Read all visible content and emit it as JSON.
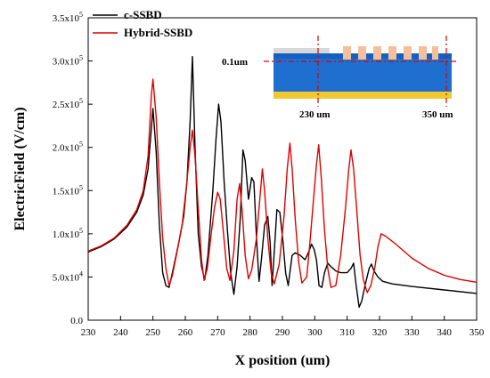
{
  "chart_data": {
    "type": "line",
    "title": "",
    "xlabel": "X position (um)",
    "ylabel": "ElectricField (V/cm)",
    "xlim": [
      230,
      350
    ],
    "ylim": [
      0,
      350000
    ],
    "x_ticks": [
      230,
      240,
      250,
      260,
      270,
      280,
      290,
      300,
      310,
      320,
      330,
      340,
      350
    ],
    "y_ticks": [
      {
        "value": 0,
        "mant": "0.0",
        "exp": ""
      },
      {
        "value": 50000,
        "mant": "5.0x10",
        "exp": "4"
      },
      {
        "value": 100000,
        "mant": "1.0x10",
        "exp": "5"
      },
      {
        "value": 150000,
        "mant": "1.5x10",
        "exp": "5"
      },
      {
        "value": 200000,
        "mant": "2.0x10",
        "exp": "5"
      },
      {
        "value": 250000,
        "mant": "2.5x10",
        "exp": "5"
      },
      {
        "value": 300000,
        "mant": "3.0x10",
        "exp": "5"
      },
      {
        "value": 350000,
        "mant": "3.5x10",
        "exp": "5"
      }
    ],
    "legend_position": "top-left",
    "grid": false,
    "series": [
      {
        "name": "c-SSBD",
        "color": "#000000",
        "points": [
          [
            230,
            79000
          ],
          [
            234,
            85000
          ],
          [
            238,
            94000
          ],
          [
            242,
            108000
          ],
          [
            245,
            125000
          ],
          [
            247,
            145000
          ],
          [
            248.5,
            175000
          ],
          [
            250,
            245000
          ],
          [
            251,
            195000
          ],
          [
            252,
            110000
          ],
          [
            253,
            55000
          ],
          [
            254,
            40000
          ],
          [
            255,
            38000
          ],
          [
            256,
            55000
          ],
          [
            258,
            90000
          ],
          [
            259.5,
            120000
          ],
          [
            260.5,
            160000
          ],
          [
            261.5,
            230000
          ],
          [
            262.2,
            305000
          ],
          [
            263,
            200000
          ],
          [
            264,
            100000
          ],
          [
            265,
            62000
          ],
          [
            266,
            47000
          ],
          [
            267,
            75000
          ],
          [
            268.5,
            150000
          ],
          [
            269.5,
            210000
          ],
          [
            270.3,
            250000
          ],
          [
            271,
            230000
          ],
          [
            272,
            160000
          ],
          [
            273,
            105000
          ],
          [
            274,
            55000
          ],
          [
            275,
            30000
          ],
          [
            276,
            62000
          ],
          [
            277,
            120000
          ],
          [
            277.8,
            197000
          ],
          [
            278.5,
            185000
          ],
          [
            279.5,
            140000
          ],
          [
            280.5,
            165000
          ],
          [
            281.2,
            160000
          ],
          [
            282,
            95000
          ],
          [
            282.8,
            45000
          ],
          [
            283.5,
            70000
          ],
          [
            284.5,
            110000
          ],
          [
            285.5,
            120000
          ],
          [
            286.2,
            90000
          ],
          [
            286.8,
            40000
          ],
          [
            287.5,
            80000
          ],
          [
            288.3,
            128000
          ],
          [
            289.2,
            125000
          ],
          [
            290.2,
            90000
          ],
          [
            291,
            55000
          ],
          [
            291.8,
            40000
          ],
          [
            293,
            75000
          ],
          [
            294,
            78000
          ],
          [
            295.5,
            75000
          ],
          [
            297,
            70000
          ],
          [
            298,
            78000
          ],
          [
            299,
            88000
          ],
          [
            299.8,
            82000
          ],
          [
            300.5,
            70000
          ],
          [
            301.3,
            40000
          ],
          [
            302.2,
            38000
          ],
          [
            303,
            55000
          ],
          [
            304,
            66000
          ],
          [
            305,
            62000
          ],
          [
            306.5,
            57000
          ],
          [
            308,
            55000
          ],
          [
            310,
            55000
          ],
          [
            311.2,
            60000
          ],
          [
            312,
            66000
          ],
          [
            312.8,
            40000
          ],
          [
            313.7,
            15000
          ],
          [
            314.5,
            22000
          ],
          [
            315.5,
            40000
          ],
          [
            316.8,
            60000
          ],
          [
            317.5,
            65000
          ],
          [
            318.3,
            57000
          ],
          [
            319.5,
            50000
          ],
          [
            321,
            45000
          ],
          [
            324,
            42000
          ],
          [
            330,
            39000
          ],
          [
            340,
            35000
          ],
          [
            350,
            31000
          ]
        ]
      },
      {
        "name": "Hybrid-SSBD",
        "color": "#e00000",
        "points": [
          [
            230,
            80000
          ],
          [
            234,
            86000
          ],
          [
            238,
            95000
          ],
          [
            242,
            110000
          ],
          [
            245,
            128000
          ],
          [
            247,
            150000
          ],
          [
            248.5,
            190000
          ],
          [
            249.5,
            260000
          ],
          [
            250,
            279000
          ],
          [
            251,
            235000
          ],
          [
            252,
            160000
          ],
          [
            253,
            95000
          ],
          [
            254,
            60000
          ],
          [
            255,
            40000
          ],
          [
            256,
            52000
          ],
          [
            257.5,
            80000
          ],
          [
            259,
            110000
          ],
          [
            260.5,
            160000
          ],
          [
            261.5,
            200000
          ],
          [
            262.2,
            220000
          ],
          [
            263,
            190000
          ],
          [
            264,
            130000
          ],
          [
            265,
            70000
          ],
          [
            265.8,
            46000
          ],
          [
            266.8,
            60000
          ],
          [
            268,
            100000
          ],
          [
            269,
            130000
          ],
          [
            270,
            148000
          ],
          [
            270.8,
            140000
          ],
          [
            271.8,
            100000
          ],
          [
            272.8,
            60000
          ],
          [
            273.8,
            46000
          ],
          [
            275,
            80000
          ],
          [
            276,
            140000
          ],
          [
            276.8,
            158000
          ],
          [
            277.6,
            125000
          ],
          [
            278.5,
            75000
          ],
          [
            279.5,
            48000
          ],
          [
            280.5,
            58000
          ],
          [
            282,
            95000
          ],
          [
            283,
            140000
          ],
          [
            283.8,
            175000
          ],
          [
            284.5,
            150000
          ],
          [
            285.5,
            95000
          ],
          [
            286.5,
            55000
          ],
          [
            287.5,
            42000
          ],
          [
            289,
            65000
          ],
          [
            290.5,
            120000
          ],
          [
            291.5,
            175000
          ],
          [
            292.3,
            205000
          ],
          [
            293,
            175000
          ],
          [
            294,
            115000
          ],
          [
            295,
            68000
          ],
          [
            296,
            43000
          ],
          [
            297.5,
            50000
          ],
          [
            298.5,
            90000
          ],
          [
            299.5,
            135000
          ],
          [
            300.5,
            180000
          ],
          [
            301.2,
            203000
          ],
          [
            302,
            165000
          ],
          [
            303,
            105000
          ],
          [
            304,
            60000
          ],
          [
            305,
            38000
          ],
          [
            306.5,
            40000
          ],
          [
            308,
            75000
          ],
          [
            309.5,
            130000
          ],
          [
            310.5,
            175000
          ],
          [
            311.2,
            197000
          ],
          [
            312,
            175000
          ],
          [
            313,
            125000
          ],
          [
            314,
            75000
          ],
          [
            315,
            47000
          ],
          [
            316.2,
            32000
          ],
          [
            317.3,
            40000
          ],
          [
            318.5,
            60000
          ],
          [
            319.5,
            85000
          ],
          [
            320.5,
            100000
          ],
          [
            322,
            97000
          ],
          [
            325,
            88000
          ],
          [
            330,
            72000
          ],
          [
            335,
            60000
          ],
          [
            340,
            52000
          ],
          [
            345,
            47000
          ],
          [
            350,
            44000
          ]
        ]
      }
    ]
  },
  "inset": {
    "label_thickness": "0.1um",
    "label_left": "230 um",
    "label_right": "350 um",
    "colors": {
      "substrate_blue": "#1e6fd0",
      "top_blue": "#1560c0",
      "gold_layer": "#f0c830",
      "electrode_pad": "#f5bf9a",
      "oxide_gray": "#d8d8d8",
      "guide_line": "#e00000"
    }
  }
}
